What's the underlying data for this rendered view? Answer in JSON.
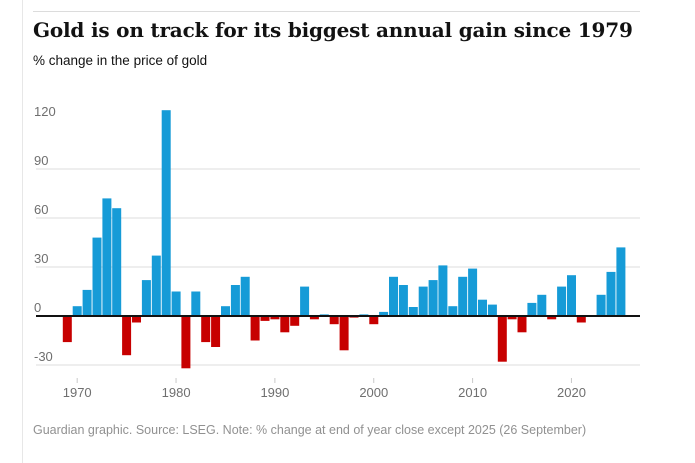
{
  "page": {
    "title": "Gold is on track for its biggest annual gain since 1979",
    "subtitle": "% change in the price of gold",
    "footer": "Guardian graphic. Source: LSEG. Note: % change at end of year close except 2025 (26 September)"
  },
  "chart_data": {
    "type": "bar",
    "title": "Gold is on track for its biggest annual gain since 1979",
    "subtitle": "% change in the price of gold",
    "xlabel": "",
    "ylabel": "% change in the price of gold",
    "x": [
      1969,
      1970,
      1971,
      1972,
      1973,
      1974,
      1975,
      1976,
      1977,
      1978,
      1979,
      1980,
      1981,
      1982,
      1983,
      1984,
      1985,
      1986,
      1987,
      1988,
      1989,
      1990,
      1991,
      1992,
      1993,
      1994,
      1995,
      1996,
      1997,
      1998,
      1999,
      2000,
      2001,
      2002,
      2003,
      2004,
      2005,
      2006,
      2007,
      2008,
      2009,
      2010,
      2011,
      2012,
      2013,
      2014,
      2015,
      2016,
      2017,
      2018,
      2019,
      2020,
      2021,
      2022,
      2023,
      2024,
      2025
    ],
    "values": [
      -16,
      6,
      16,
      48,
      72,
      66,
      -24,
      -4,
      22,
      37,
      126,
      15,
      -32,
      15,
      -16,
      -19,
      6,
      19,
      24,
      -15,
      -3,
      -2,
      -10,
      -6,
      18,
      -2,
      1,
      -5,
      -21,
      -1,
      1,
      -5,
      2.5,
      24,
      19,
      5.5,
      18,
      22,
      31,
      6,
      24,
      29,
      10,
      7,
      -28,
      -2,
      -10,
      8,
      13,
      -2,
      18,
      25,
      -4,
      -0.3,
      13,
      27,
      42
    ],
    "y_ticks": [
      120,
      90,
      60,
      30,
      0,
      -30
    ],
    "y_tick_labels": [
      "120",
      "90",
      "60",
      "30",
      "0",
      "-30"
    ],
    "x_ticks": [
      1970,
      1980,
      1990,
      2000,
      2010,
      2020
    ],
    "x_tick_labels": [
      "1970",
      "1980",
      "1990",
      "2000",
      "2010",
      "2020"
    ],
    "ylim": [
      -38,
      132
    ],
    "grid": true,
    "gridlines_at": [
      90,
      60,
      30,
      -30
    ],
    "legend_position": "none",
    "positive_color": "#169bd7",
    "negative_color": "#c70000",
    "axis_color": "#121212",
    "grid_color": "#dcdcdc",
    "label_color": "#6f6f6f"
  }
}
